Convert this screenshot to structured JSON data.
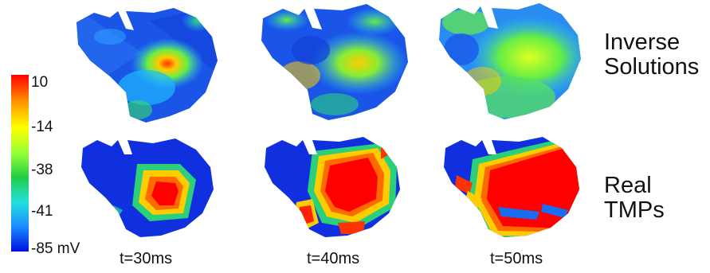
{
  "row_labels": {
    "inverse": [
      "Inverse",
      "Solutions"
    ],
    "real": [
      "Real",
      "TMPs"
    ]
  },
  "time_labels": [
    "t=30ms",
    "t=40ms",
    "t=50ms"
  ],
  "colorbar": {
    "ticks": [
      "10",
      "-14",
      "-38",
      "-41",
      "-85 mV"
    ],
    "colors": {
      "high": "#ff0000",
      "orange": "#ff9a00",
      "yellow": "#ffff00",
      "green": "#22cc44",
      "cyan": "#22e0e0",
      "blue": "#1a8aff",
      "low": "#0010e0"
    }
  }
}
